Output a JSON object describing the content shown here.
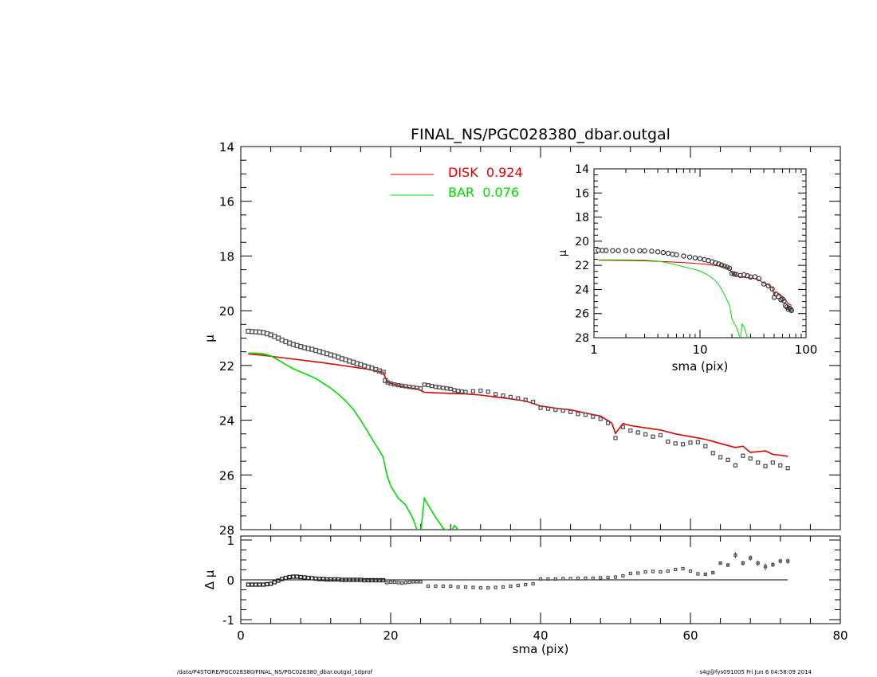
{
  "footer": {
    "left": "/data/P4STORE/PGC028380/FINAL_NS/PGC028380_dbar.outgal_1dprof",
    "right": "s4g@fys091005  Fri Jun  6 04:58:09 2014"
  },
  "colors": {
    "disk": "#dd0000",
    "bar": "#00dd00",
    "data": "#555555",
    "axes": "#000000"
  },
  "chart_data": [
    {
      "id": "main",
      "type": "line",
      "title": "FINAL_NS/PGC028380_dbar.outgal",
      "xlabel": "",
      "ylabel": "μ",
      "xlim": [
        0,
        80
      ],
      "ylim": [
        28,
        14
      ],
      "y_inverted": true,
      "yticks": [
        14,
        16,
        18,
        20,
        22,
        24,
        26,
        28
      ],
      "ytick_labels": [
        "14",
        "16",
        "18",
        "20",
        "22",
        "24",
        "26",
        "28"
      ],
      "legend": [
        {
          "label": "DISK  0.924",
          "color": "#dd0000"
        },
        {
          "label": "BAR  0.076",
          "color": "#00dd00"
        }
      ],
      "legend_position": "top-center",
      "series": [
        {
          "key": "data",
          "style": "squares",
          "x": [
            1.0,
            1.5,
            2.0,
            2.5,
            3.0,
            3.5,
            4.0,
            4.5,
            5.0,
            5.5,
            6.0,
            6.5,
            7.0,
            7.5,
            8.0,
            8.5,
            9.0,
            9.5,
            10.0,
            10.5,
            11.0,
            11.5,
            12.0,
            12.5,
            13.0,
            13.5,
            14.0,
            14.5,
            15.0,
            15.5,
            16.0,
            16.5,
            17.0,
            17.5,
            18.0,
            18.5,
            19.0,
            19.3,
            19.6,
            20.0,
            20.5,
            21.0,
            21.5,
            22.0,
            22.5,
            23.0,
            23.5,
            24.0,
            24.5,
            25.0,
            25.5,
            26.0,
            26.5,
            27.0,
            27.5,
            28.0,
            28.5,
            29.0,
            29.5,
            30.0,
            31.0,
            32.0,
            33.0,
            34.0,
            35.0,
            36.0,
            37.0,
            38.0,
            39.0,
            40.0,
            41.0,
            42.0,
            43.0,
            44.0,
            45.0,
            46.0,
            47.0,
            48.0,
            49.0,
            50.0,
            51.0,
            52.0,
            53.0,
            54.0,
            55.0,
            56.0,
            57.0,
            58.0,
            59.0,
            60.0,
            61.0,
            62.0,
            63.0,
            64.0,
            65.0,
            66.0,
            67.0,
            68.0,
            69.0,
            70.0,
            71.0,
            72.0,
            73.0
          ],
          "y": [
            20.75,
            20.76,
            20.77,
            20.78,
            20.8,
            20.84,
            20.88,
            20.94,
            21.0,
            21.07,
            21.13,
            21.18,
            21.23,
            21.27,
            21.31,
            21.35,
            21.38,
            21.41,
            21.45,
            21.49,
            21.53,
            21.57,
            21.61,
            21.65,
            21.7,
            21.75,
            21.79,
            21.84,
            21.88,
            21.93,
            21.97,
            22.02,
            22.06,
            22.1,
            22.15,
            22.2,
            22.25,
            22.55,
            22.62,
            22.66,
            22.69,
            22.72,
            22.74,
            22.76,
            22.78,
            22.8,
            22.82,
            22.84,
            22.7,
            22.72,
            22.75,
            22.78,
            22.8,
            22.82,
            22.84,
            22.86,
            22.9,
            22.93,
            22.95,
            22.97,
            22.94,
            22.92,
            22.96,
            23.05,
            23.1,
            23.15,
            23.2,
            23.26,
            23.33,
            23.55,
            23.58,
            23.62,
            23.65,
            23.7,
            23.77,
            23.8,
            23.87,
            23.95,
            24.1,
            24.65,
            24.25,
            24.38,
            24.45,
            24.52,
            24.6,
            24.55,
            24.78,
            24.85,
            24.88,
            24.82,
            24.8,
            24.95,
            25.2,
            25.35,
            25.45,
            25.65,
            25.3,
            25.4,
            25.55,
            25.68,
            25.55,
            25.65,
            25.75
          ]
        },
        {
          "key": "disk",
          "style": "line",
          "x": [
            1,
            3,
            5,
            8,
            11,
            14,
            17,
            19,
            19.5,
            20,
            22,
            23.5,
            24.5,
            26,
            28,
            30,
            32,
            34,
            36,
            38,
            40,
            42,
            44,
            46,
            48,
            49.5,
            50,
            51,
            52,
            54,
            56,
            58,
            60,
            62,
            64,
            66,
            67,
            68,
            70,
            71,
            72,
            73
          ],
          "y": [
            21.58,
            21.63,
            21.7,
            21.8,
            21.9,
            22.02,
            22.14,
            22.25,
            22.58,
            22.65,
            22.8,
            22.85,
            22.98,
            23.0,
            23.02,
            23.04,
            23.08,
            23.15,
            23.22,
            23.3,
            23.48,
            23.56,
            23.62,
            23.74,
            23.85,
            24.1,
            24.48,
            24.12,
            24.2,
            24.28,
            24.36,
            24.5,
            24.6,
            24.7,
            24.85,
            25.0,
            24.95,
            25.18,
            25.12,
            25.25,
            25.28,
            25.32
          ]
        },
        {
          "key": "bar",
          "style": "line",
          "x": [
            1,
            2,
            3,
            4,
            5,
            6,
            7,
            8,
            9,
            10,
            11,
            12,
            13,
            14,
            15,
            16,
            17,
            17.5,
            18,
            18.5,
            19,
            19.5,
            20,
            21,
            22,
            23,
            23.5,
            24,
            24.5,
            25,
            26,
            27,
            28,
            28.5,
            29,
            29.5
          ],
          "y": [
            21.55,
            21.55,
            21.57,
            21.65,
            21.8,
            21.97,
            22.12,
            22.24,
            22.35,
            22.48,
            22.65,
            22.83,
            23.05,
            23.3,
            23.6,
            24.0,
            24.45,
            24.68,
            24.9,
            25.12,
            25.35,
            26.0,
            26.4,
            26.85,
            27.1,
            27.6,
            28.0,
            28.1,
            26.85,
            27.1,
            27.55,
            27.95,
            28.1,
            27.85,
            28.0,
            28.05
          ]
        }
      ]
    },
    {
      "id": "residual",
      "type": "scatter",
      "xlabel": "sma (pix)",
      "ylabel": "Δ μ",
      "xlim": [
        0,
        80
      ],
      "ylim": [
        -1.1,
        1.1
      ],
      "xticks": [
        0,
        20,
        40,
        60,
        80
      ],
      "xtick_labels": [
        "0",
        "20",
        "40",
        "60",
        "80"
      ],
      "yticks": [
        -1,
        0,
        1
      ],
      "ytick_labels": [
        "-1",
        "0",
        "1"
      ],
      "zero_line": true,
      "x": [
        1.0,
        1.5,
        2.0,
        2.5,
        3.0,
        3.5,
        4.0,
        4.5,
        5.0,
        5.5,
        6.0,
        6.5,
        7.0,
        7.5,
        8.0,
        8.5,
        9.0,
        9.5,
        10.0,
        10.5,
        11.0,
        11.5,
        12.0,
        12.5,
        13.0,
        13.5,
        14.0,
        14.5,
        15.0,
        15.5,
        16.0,
        16.5,
        17.0,
        17.5,
        18.0,
        18.5,
        19.0,
        19.5,
        20.0,
        20.5,
        21.0,
        21.5,
        22.0,
        22.5,
        23.0,
        23.5,
        24.0,
        25.0,
        26.0,
        27.0,
        28.0,
        29.0,
        30.0,
        31.0,
        32.0,
        33.0,
        34.0,
        35.0,
        36.0,
        37.0,
        38.0,
        39.0,
        40.0,
        41.0,
        42.0,
        43.0,
        44.0,
        45.0,
        46.0,
        47.0,
        48.0,
        49.0,
        50.0,
        51.0,
        52.0,
        53.0,
        54.0,
        55.0,
        56.0,
        57.0,
        58.0,
        59.0,
        60.0,
        61.0,
        62.0,
        63.0,
        64.0,
        65.0,
        66.0,
        67.0,
        68.0,
        69.0,
        70.0,
        71.0,
        72.0,
        73.0
      ],
      "y": [
        -0.12,
        -0.12,
        -0.12,
        -0.12,
        -0.12,
        -0.11,
        -0.1,
        -0.06,
        -0.02,
        0.02,
        0.05,
        0.07,
        0.08,
        0.08,
        0.07,
        0.06,
        0.05,
        0.04,
        0.03,
        0.02,
        0.02,
        0.01,
        0.01,
        0.01,
        0.01,
        0.0,
        0.0,
        0.0,
        0.0,
        0.0,
        0.0,
        -0.01,
        -0.01,
        -0.01,
        -0.01,
        -0.01,
        -0.01,
        -0.07,
        -0.06,
        -0.06,
        -0.07,
        -0.08,
        -0.07,
        -0.06,
        -0.05,
        -0.05,
        -0.05,
        -0.16,
        -0.16,
        -0.16,
        -0.16,
        -0.18,
        -0.18,
        -0.19,
        -0.2,
        -0.2,
        -0.19,
        -0.18,
        -0.16,
        -0.14,
        -0.12,
        -0.1,
        0.02,
        0.02,
        0.02,
        0.03,
        0.03,
        0.04,
        0.04,
        0.04,
        0.05,
        0.06,
        0.07,
        0.1,
        0.16,
        0.17,
        0.2,
        0.21,
        0.2,
        0.22,
        0.26,
        0.28,
        0.22,
        0.15,
        0.14,
        0.18,
        0.42,
        0.37,
        0.62,
        0.42,
        0.55,
        0.42,
        0.33,
        0.38,
        0.47,
        0.47
      ],
      "y_err": [
        0.01,
        0.01,
        0.01,
        0.01,
        0.01,
        0.01,
        0.01,
        0.01,
        0.01,
        0.01,
        0.01,
        0.01,
        0.01,
        0.01,
        0.01,
        0.01,
        0.01,
        0.01,
        0.01,
        0.01,
        0.01,
        0.01,
        0.01,
        0.01,
        0.01,
        0.01,
        0.01,
        0.01,
        0.01,
        0.01,
        0.01,
        0.01,
        0.01,
        0.01,
        0.01,
        0.01,
        0.01,
        0.01,
        0.01,
        0.01,
        0.01,
        0.01,
        0.01,
        0.01,
        0.01,
        0.01,
        0.01,
        0.01,
        0.01,
        0.01,
        0.01,
        0.01,
        0.01,
        0.01,
        0.01,
        0.01,
        0.01,
        0.01,
        0.01,
        0.01,
        0.01,
        0.01,
        0.01,
        0.01,
        0.01,
        0.01,
        0.01,
        0.01,
        0.01,
        0.01,
        0.01,
        0.01,
        0.01,
        0.01,
        0.01,
        0.01,
        0.01,
        0.01,
        0.01,
        0.01,
        0.01,
        0.01,
        0.01,
        0.01,
        0.02,
        0.03,
        0.04,
        0.05,
        0.08,
        0.06,
        0.07,
        0.07,
        0.09,
        0.06,
        0.06,
        0.07
      ]
    },
    {
      "id": "inset",
      "type": "line",
      "xlabel": "sma (pix)",
      "ylabel": "μ",
      "xscale": "log",
      "xlim": [
        1,
        100
      ],
      "ylim": [
        28,
        14
      ],
      "y_inverted": true,
      "xticks": [
        1,
        10,
        100
      ],
      "xtick_labels": [
        "1",
        "10",
        "100"
      ],
      "yticks": [
        14,
        16,
        18,
        20,
        22,
        24,
        26,
        28
      ],
      "ytick_labels": [
        "14",
        "16",
        "18",
        "20",
        "22",
        "24",
        "26",
        "28"
      ],
      "series": [
        {
          "key": "data",
          "style": "circles",
          "x": [
            1.1,
            1.2,
            1.3,
            1.5,
            1.7,
            2.0,
            2.3,
            2.7,
            3.0,
            3.5,
            4.0,
            4.5,
            5.0,
            5.5,
            6.0,
            7.0,
            8.0,
            9.0,
            10.0,
            11.0,
            12.0,
            13.0,
            14.0,
            15.0,
            16.0,
            17.0,
            18.0,
            19.0,
            20.0,
            21.0,
            22.0,
            24.0,
            26.0,
            28.0,
            30.0,
            33.0,
            36.0,
            40.0,
            44.0,
            48.0,
            50.0,
            52.0,
            55.0,
            58.0,
            60.0,
            62.0,
            64.0,
            66.0,
            68.0,
            70.0,
            72.0,
            73.0
          ],
          "y": [
            20.75,
            20.76,
            20.77,
            20.78,
            20.78,
            20.78,
            20.79,
            20.79,
            20.8,
            20.82,
            20.88,
            20.94,
            21.0,
            21.07,
            21.13,
            21.23,
            21.31,
            21.38,
            21.45,
            21.53,
            21.61,
            21.7,
            21.79,
            21.88,
            21.97,
            22.06,
            22.15,
            22.25,
            22.66,
            22.72,
            22.76,
            22.84,
            22.78,
            22.86,
            22.97,
            22.94,
            23.1,
            23.55,
            23.7,
            23.95,
            24.65,
            24.38,
            24.6,
            24.85,
            24.8,
            24.95,
            25.35,
            25.45,
            25.65,
            25.55,
            25.65,
            25.75
          ]
        },
        {
          "key": "disk",
          "style": "line",
          "x": [
            1.1,
            2,
            3,
            5,
            8,
            11,
            14,
            17,
            19,
            20,
            22,
            24.5,
            28,
            32,
            36,
            40,
            44,
            48,
            50,
            52,
            56,
            60,
            64,
            68,
            73
          ],
          "y": [
            21.58,
            21.6,
            21.63,
            21.7,
            21.8,
            21.9,
            22.02,
            22.14,
            22.25,
            22.65,
            22.8,
            22.98,
            23.02,
            23.08,
            23.22,
            23.48,
            23.62,
            23.85,
            24.48,
            24.2,
            24.36,
            24.6,
            24.85,
            25.18,
            25.32
          ]
        },
        {
          "key": "bar",
          "style": "line",
          "x": [
            1.1,
            2,
            3,
            4,
            5,
            6,
            7,
            8,
            9,
            10,
            11,
            12,
            13,
            14,
            15,
            16,
            17,
            18,
            19,
            20,
            21,
            22,
            23,
            24,
            25,
            26,
            27,
            28,
            29
          ],
          "y": [
            21.55,
            21.55,
            21.57,
            21.65,
            21.8,
            21.97,
            22.12,
            22.24,
            22.35,
            22.48,
            22.65,
            22.83,
            23.05,
            23.3,
            23.6,
            24.0,
            24.45,
            24.9,
            25.35,
            26.4,
            26.85,
            27.1,
            27.6,
            28.1,
            26.85,
            27.1,
            27.55,
            28.0,
            28.1
          ]
        }
      ]
    }
  ]
}
